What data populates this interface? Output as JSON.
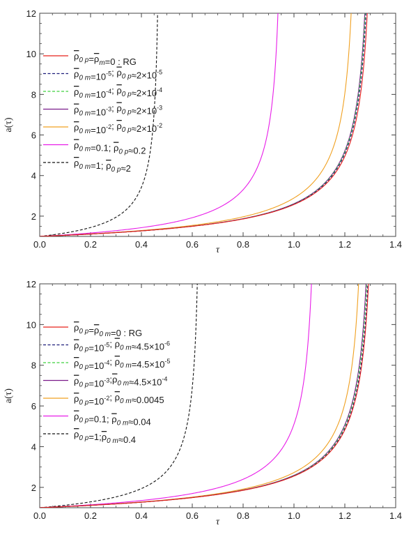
{
  "chart_data": [
    {
      "type": "line",
      "xlabel": "τ",
      "ylabel": "a(τ)",
      "xlim": [
        0,
        1.4
      ],
      "ylim": [
        1,
        12
      ],
      "xticks": [
        "0.0",
        "0.2",
        "0.4",
        "0.6",
        "0.8",
        "1.0",
        "1.2",
        "1.4"
      ],
      "yticks": [
        "2",
        "4",
        "6",
        "8",
        "10",
        "12"
      ],
      "legend_position": "upper-left",
      "series": [
        {
          "name": "ρ̅0 p=ρ̅m=0 : RG",
          "color": "#e8201a",
          "dash": "solid",
          "tau_blowup": 1.32
        },
        {
          "name": "ρ̅0 m=10^-5; ρ̅0 p≈2×10^-5",
          "color": "#1c1c7a",
          "dash": "dashed",
          "tau_blowup": 1.315
        },
        {
          "name": "ρ̅0 m=10^-4; ρ̅0 p≈2×10^-4",
          "color": "#3fd13f",
          "dash": "dashed",
          "tau_blowup": 1.312
        },
        {
          "name": "ρ̅0 m=10^-3; ρ̅0 p≈2×10^-3",
          "color": "#7a1b8a",
          "dash": "solid",
          "tau_blowup": 1.31
        },
        {
          "name": "ρ̅0 m=10^-2; ρ̅0 p≈2×10^-2",
          "color": "#f0a020",
          "dash": "solid",
          "tau_blowup": 1.255
        },
        {
          "name": "ρ̅0 m=0.1; ρ̅0 p≈0.2",
          "color": "#e81ce8",
          "dash": "solid",
          "tau_blowup": 0.96
        },
        {
          "name": "ρ̅0 m=1; ρ̅0 p≈2",
          "color": "#111111",
          "dash": "dashed",
          "tau_blowup": 0.475
        }
      ]
    },
    {
      "type": "line",
      "xlabel": "τ",
      "ylabel": "a(τ)",
      "xlim": [
        0,
        1.4
      ],
      "ylim": [
        1,
        12
      ],
      "xticks": [
        "0.0",
        "0.2",
        "0.4",
        "0.6",
        "0.8",
        "1.0",
        "1.2",
        "1.4"
      ],
      "yticks": [
        "2",
        "4",
        "6",
        "8",
        "10",
        "12"
      ],
      "legend_position": "upper-left",
      "series": [
        {
          "name": "ρ̅0 p=ρ̅0 m=0 : RG",
          "color": "#e8201a",
          "dash": "solid",
          "tau_blowup": 1.325
        },
        {
          "name": "ρ̅0 p=10^-5; ρ̅0 m≈4.5×10^-6",
          "color": "#1c1c7a",
          "dash": "dashed",
          "tau_blowup": 1.322
        },
        {
          "name": "ρ̅0 p=10^-4; ρ̅0 m=4.5×10^-5",
          "color": "#3fd13f",
          "dash": "dashed",
          "tau_blowup": 1.318
        },
        {
          "name": "ρ̅0 p=10^-3; ρ̅0 m≈4.5×10^-4",
          "color": "#7a1b8a",
          "dash": "solid",
          "tau_blowup": 1.315
        },
        {
          "name": "ρ̅0 p=10^-2; ρ̅0 m≈0.0045",
          "color": "#f0a020",
          "dash": "solid",
          "tau_blowup": 1.285
        },
        {
          "name": "ρ̅0 p=0.1; ρ̅0 m≈0.04",
          "color": "#e81ce8",
          "dash": "solid",
          "tau_blowup": 1.095
        },
        {
          "name": "ρ̅0 p=1;ρ̅0 m≈0.4",
          "color": "#111111",
          "dash": "dashed",
          "tau_blowup": 0.635
        }
      ]
    }
  ],
  "legends": [
    [
      {
        "a": "ρ",
        "as": "0 p",
        "b": "=",
        "c": "ρ",
        "cs": "m",
        "d": "=0 : RG",
        "e": "",
        "f": "",
        "g": ""
      },
      {
        "a": "ρ",
        "as": "0 m",
        "b": "=10",
        "bsup": "-5",
        "c": "; ",
        "d": "ρ",
        "ds": "0 p",
        "e": "≈2×10",
        "esup": "-5"
      },
      {
        "a": "ρ",
        "as": "0 m",
        "b": "=10",
        "bsup": "-4",
        "c": "; ",
        "d": "ρ",
        "ds": "0 p",
        "e": "≈2×10",
        "esup": "-4"
      },
      {
        "a": "ρ",
        "as": "0 m",
        "b": "=10",
        "bsup": "-3",
        "c": "; ",
        "d": "ρ",
        "ds": "0 p",
        "e": "≈2×10",
        "esup": "-3"
      },
      {
        "a": "ρ",
        "as": "0 m",
        "b": "=10",
        "bsup": "-2",
        "c": "; ",
        "d": "ρ",
        "ds": "0 p",
        "e": "≈2×10",
        "esup": "-2"
      },
      {
        "a": "ρ",
        "as": "0 m",
        "b": "=0.1; ",
        "bsup": "",
        "c": "",
        "d": "ρ",
        "ds": "0 p",
        "e": "≈0.2",
        "esup": ""
      },
      {
        "a": "ρ",
        "as": "0 m",
        "b": "=1; ",
        "bsup": "",
        "c": "",
        "d": "ρ",
        "ds": "0 p",
        "e": "≈2",
        "esup": ""
      }
    ],
    [
      {
        "a": "ρ",
        "as": "0 p",
        "b": "=",
        "c": "ρ",
        "cs": "0 m",
        "d": "=0 : RG",
        "e": "",
        "f": "",
        "g": ""
      },
      {
        "a": "ρ",
        "as": "0 p",
        "b": "=10",
        "bsup": "-5",
        "c": "; ",
        "d": "ρ",
        "ds": "0 m",
        "e": "≈4.5×10",
        "esup": "-6"
      },
      {
        "a": "ρ",
        "as": "0 p",
        "b": "=10",
        "bsup": "-4",
        "c": "; ",
        "d": "ρ",
        "ds": "0 m",
        "e": "=4.5×10",
        "esup": "-5"
      },
      {
        "a": "ρ",
        "as": "0 p",
        "b": "=10",
        "bsup": "-3",
        "c": ";",
        "d": "ρ",
        "ds": "0 m",
        "e": "≈4.5×10",
        "esup": "-4"
      },
      {
        "a": "ρ",
        "as": "0 p",
        "b": "=10",
        "bsup": "-2",
        "c": "; ",
        "d": "ρ",
        "ds": "0 m",
        "e": "≈0.0045",
        "esup": ""
      },
      {
        "a": "ρ",
        "as": "0 p",
        "b": "=0.1; ",
        "bsup": "",
        "c": "",
        "d": "ρ",
        "ds": "0 m",
        "e": "≈0.04",
        "esup": ""
      },
      {
        "a": "ρ",
        "as": "0 p",
        "b": "=1;",
        "bsup": "",
        "c": "",
        "d": "ρ",
        "ds": "0 m",
        "e": "≈0.4",
        "esup": ""
      }
    ]
  ]
}
